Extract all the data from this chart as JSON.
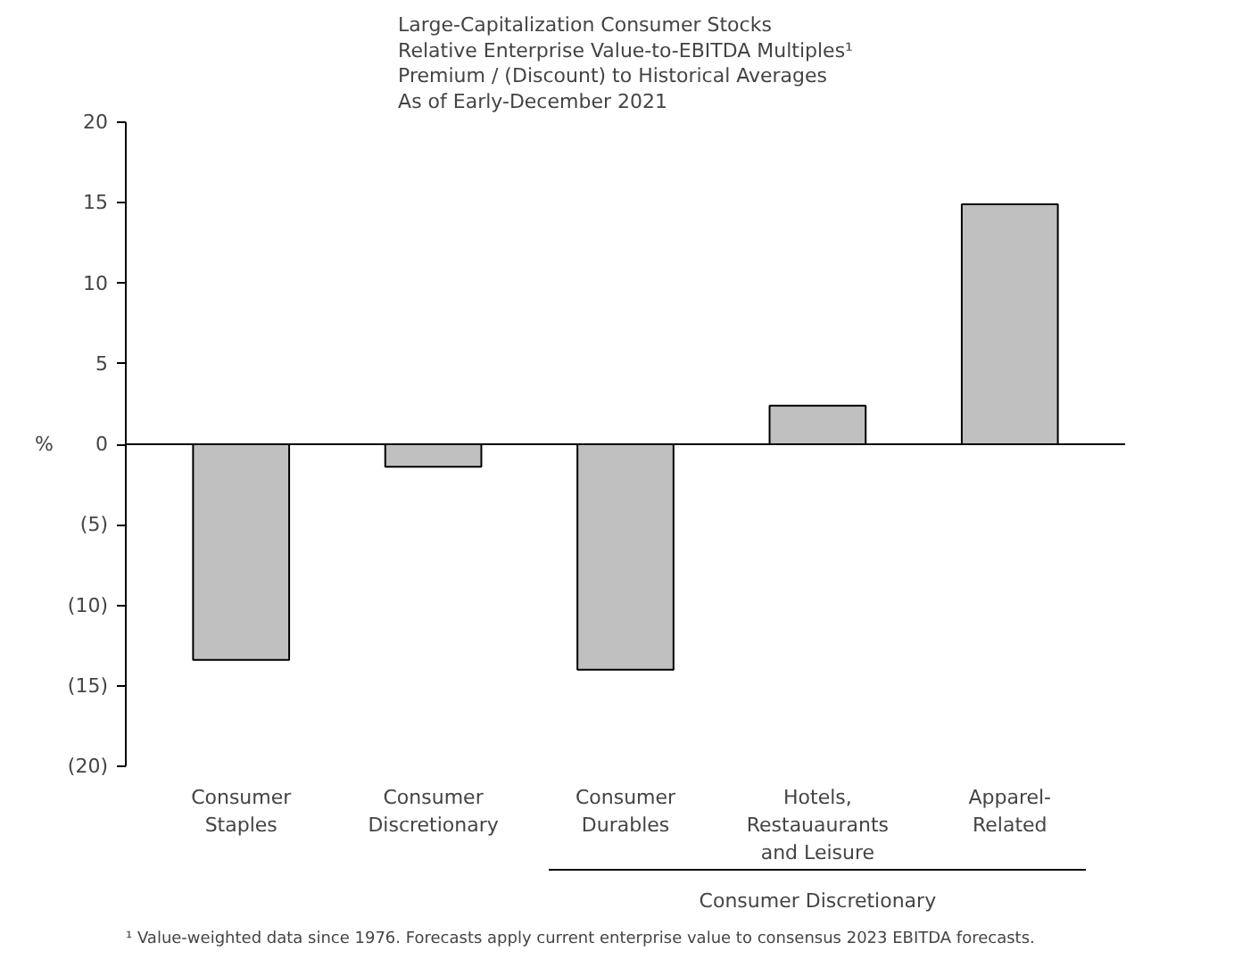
{
  "chart_data": {
    "type": "bar",
    "title": "Large-Capitalization Consumer Stocks\nRelative Enterprise Value-to-EBITDA Multiples¹\nPremium / (Discount) to Historical Averages\nAs of Early-December 2021",
    "ylabel": "%",
    "categories": [
      "Consumer Staples",
      "Consumer Discretionary",
      "Consumer Durables",
      "Hotels, Restauaurants and Leisure",
      "Apparel-Related"
    ],
    "values": [
      -13.4,
      -1.4,
      -14.0,
      2.4,
      14.9
    ],
    "color": "#c0c0c0",
    "ylim": [
      -20,
      20
    ],
    "yticks": [
      {
        "value": -20,
        "label": "(20)"
      },
      {
        "value": -15,
        "label": "(15)"
      },
      {
        "value": -10,
        "label": "(10)"
      },
      {
        "value": -5,
        "label": "(5)"
      },
      0,
      5,
      10,
      15,
      20
    ],
    "annotations": [
      "Consumer Discretionary",
      "¹ Value-weighted data since 1976.  Forecasts apply current enterprise value to consensus 2023 EBITDA forecasts."
    ]
  }
}
